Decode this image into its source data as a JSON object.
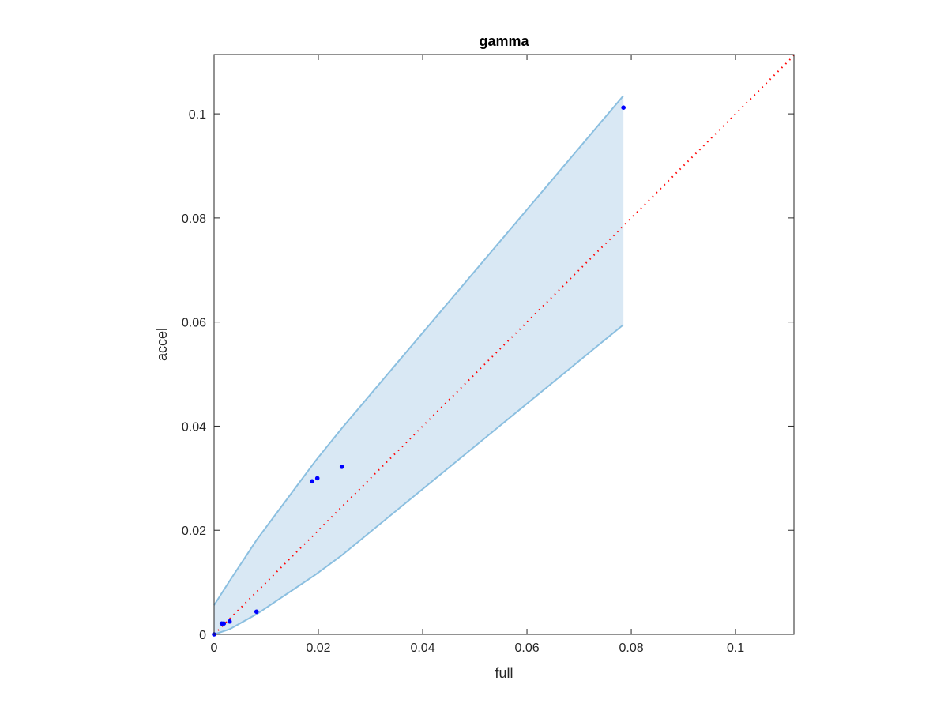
{
  "chart_data": {
    "type": "scatter",
    "title": "gamma",
    "xlabel": "full",
    "ylabel": "accel",
    "xlim": [
      0,
      0.1112
    ],
    "ylim": [
      0,
      0.1114
    ],
    "grid": false,
    "xticks": [
      "0",
      "0.02",
      "0.04",
      "0.06",
      "0.08",
      "0.1"
    ],
    "yticks": [
      "0",
      "0.02",
      "0.04",
      "0.06",
      "0.08",
      "0.1"
    ],
    "tick_values": [
      0,
      0.02,
      0.04,
      0.06,
      0.08,
      0.1
    ],
    "points": {
      "color": "#0000ff",
      "x": [
        0,
        0.00147,
        0.00186,
        0.00298,
        0.00814,
        0.0188,
        0.0198,
        0.0245,
        0.0785
      ],
      "y": [
        0,
        0.00208,
        0.00208,
        0.00247,
        0.00436,
        0.0294,
        0.03,
        0.0322,
        0.1012
      ]
    },
    "band": {
      "fill": "#d9e8f4",
      "edge": "#8bbfe0",
      "x": [
        0,
        0.003,
        0.0082,
        0.0195,
        0.0245,
        0.0785
      ],
      "upper": [
        0.0056,
        0.0103,
        0.0182,
        0.0334,
        0.0396,
        0.1035
      ],
      "lower": [
        0,
        0.001,
        0.0039,
        0.0115,
        0.0152,
        0.0595
      ]
    },
    "reference_line": {
      "type": "y=x",
      "color": "#ff0000",
      "style": "dotted"
    }
  }
}
